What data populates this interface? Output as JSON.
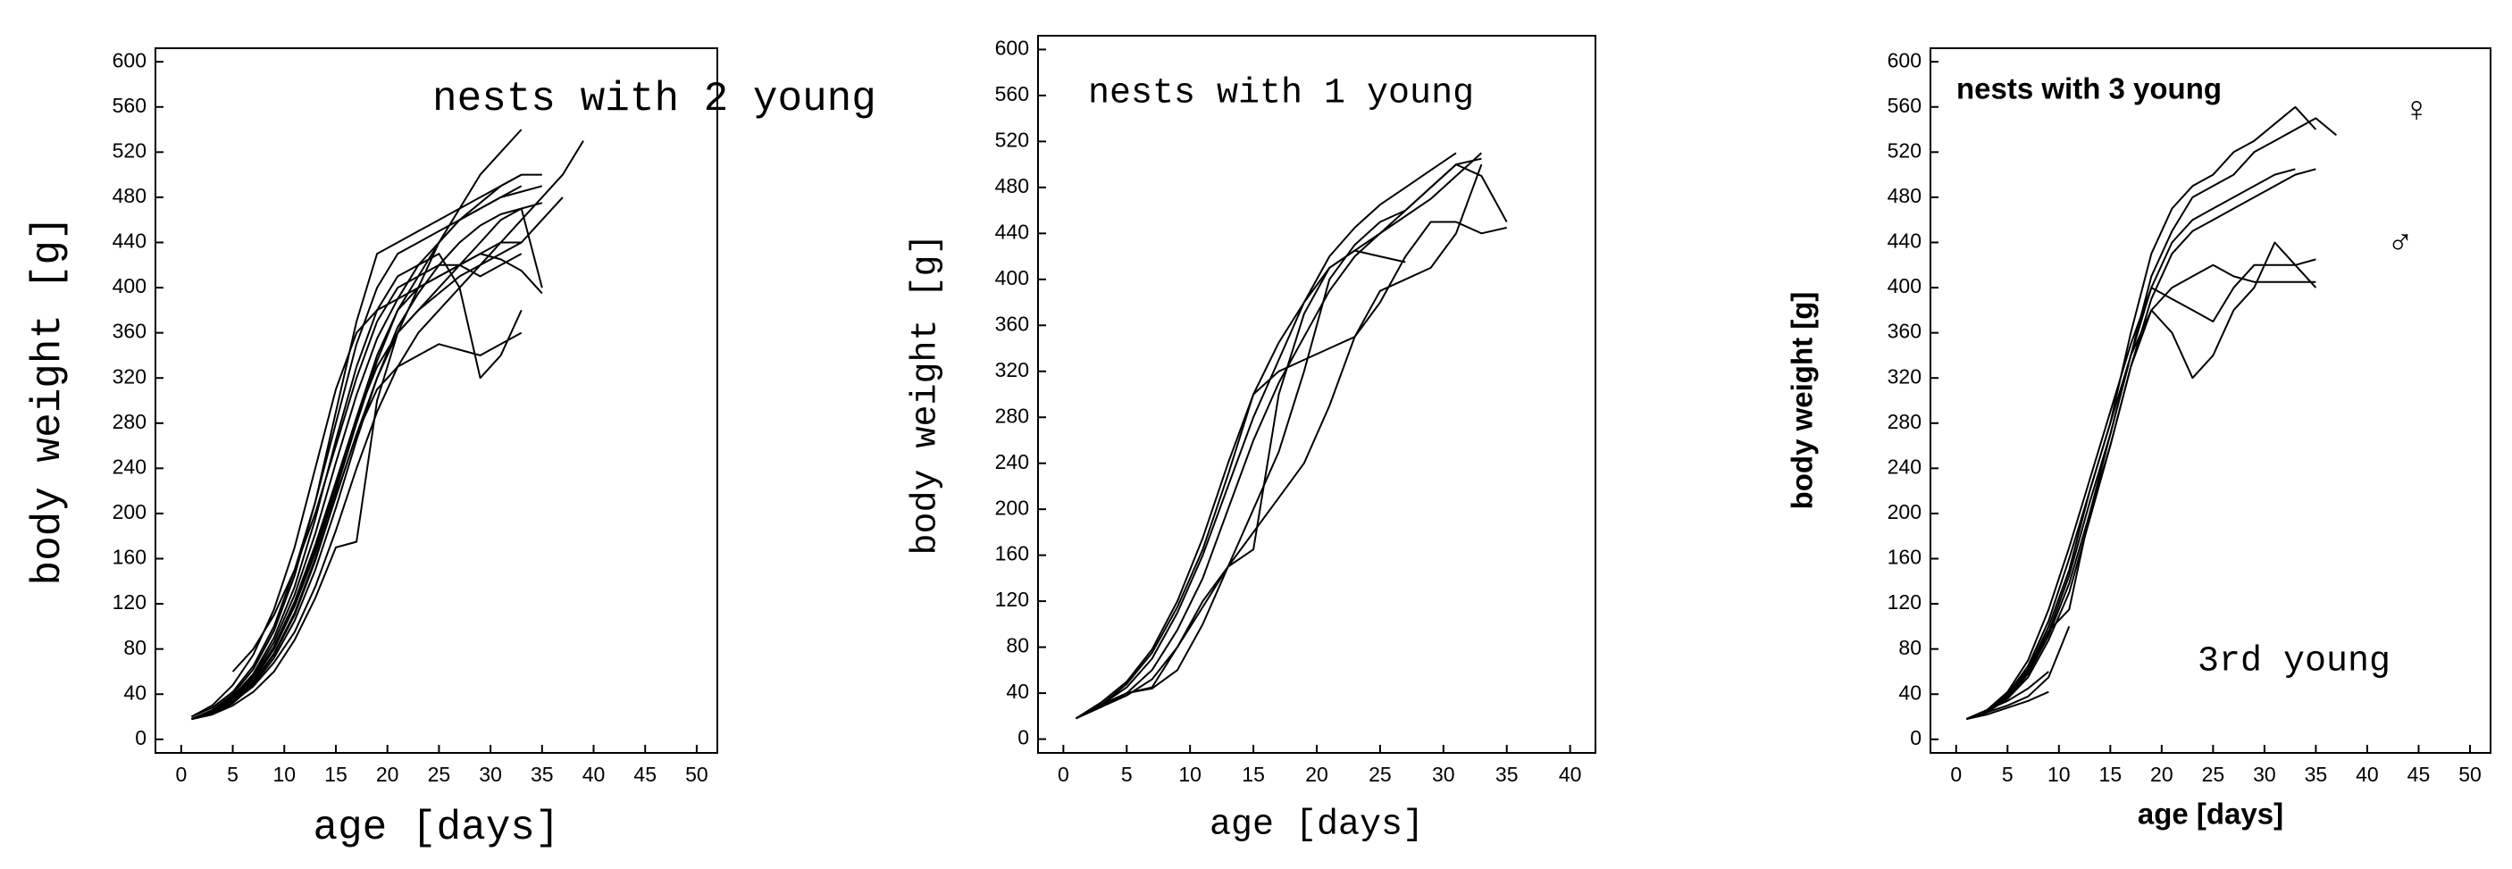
{
  "chart_data": [
    {
      "type": "line",
      "title": "nests with 2 young",
      "x_label": "age [days]",
      "y_label": "body weight [g]",
      "x": [
        1,
        3,
        5,
        7,
        9,
        11,
        13,
        15,
        17,
        19,
        21,
        23,
        25,
        27,
        29,
        31,
        33,
        35,
        37,
        39
      ],
      "series": [
        {
          "color": "#000000",
          "values": [
            18,
            24,
            35,
            52,
            80,
            118,
            165,
            220,
            280,
            335,
            380,
            410,
            440,
            470,
            500,
            520,
            540,
            null,
            null,
            null
          ]
        },
        {
          "color": "#000000",
          "values": [
            18,
            22,
            32,
            48,
            72,
            105,
            150,
            205,
            265,
            320,
            365,
            395,
            420,
            440,
            455,
            465,
            470,
            475,
            null,
            null
          ]
        },
        {
          "color": "#000000",
          "values": [
            20,
            28,
            42,
            65,
            100,
            150,
            210,
            280,
            350,
            400,
            430,
            440,
            450,
            460,
            470,
            480,
            490,
            null,
            null,
            null
          ]
        },
        {
          "color": "#000000",
          "values": [
            18,
            23,
            33,
            47,
            68,
            95,
            135,
            185,
            240,
            290,
            330,
            360,
            380,
            400,
            420,
            440,
            460,
            480,
            500,
            530
          ]
        },
        {
          "color": "#000000",
          "values": [
            18,
            25,
            38,
            58,
            90,
            135,
            195,
            265,
            330,
            380,
            410,
            420,
            430,
            400,
            320,
            340,
            380,
            null,
            null,
            null
          ]
        },
        {
          "color": "#000000",
          "values": [
            18,
            24,
            36,
            54,
            82,
            122,
            172,
            228,
            285,
            330,
            360,
            380,
            400,
            420,
            440,
            460,
            470,
            400,
            null,
            null
          ]
        },
        {
          "color": "#000000",
          "values": [
            20,
            30,
            48,
            75,
            115,
            170,
            240,
            310,
            360,
            380,
            390,
            400,
            410,
            420,
            430,
            440,
            440,
            null,
            null,
            null
          ]
        },
        {
          "color": "#000000",
          "values": [
            18,
            22,
            30,
            42,
            60,
            88,
            125,
            170,
            175,
            300,
            360,
            380,
            395,
            410,
            420,
            430,
            440,
            460,
            480,
            null
          ]
        },
        {
          "color": "#000000",
          "values": [
            18,
            26,
            40,
            62,
            96,
            145,
            210,
            290,
            370,
            430,
            440,
            450,
            460,
            470,
            480,
            490,
            500,
            null,
            null,
            null
          ]
        },
        {
          "color": "#000000",
          "values": [
            18,
            24,
            34,
            50,
            75,
            110,
            158,
            215,
            270,
            310,
            330,
            340,
            350,
            345,
            340,
            350,
            360,
            null,
            null,
            null
          ]
        },
        {
          "color": "#000000",
          "values": [
            18,
            23,
            34,
            50,
            76,
            112,
            160,
            215,
            270,
            320,
            360,
            400,
            440,
            460,
            470,
            480,
            485,
            490,
            null,
            null
          ]
        },
        {
          "color": "#000000",
          "values": [
            null,
            null,
            60,
            80,
            110,
            150,
            200,
            260,
            320,
            370,
            400,
            410,
            420,
            420,
            410,
            420,
            430,
            null,
            null,
            null
          ]
        },
        {
          "color": "#000000",
          "values": [
            18,
            25,
            37,
            56,
            86,
            128,
            182,
            245,
            305,
            355,
            390,
            420,
            440,
            460,
            475,
            490,
            500,
            500,
            null,
            null
          ]
        },
        {
          "color": "#000000",
          "values": [
            18,
            24,
            36,
            53,
            80,
            118,
            168,
            225,
            285,
            340,
            380,
            400,
            410,
            420,
            430,
            425,
            415,
            395,
            null,
            null
          ]
        }
      ],
      "xlim": [
        -2.5,
        52
      ],
      "ylim": [
        -12,
        612
      ],
      "xticks": [
        0,
        5,
        10,
        15,
        20,
        25,
        30,
        35,
        40,
        45,
        50
      ],
      "yticks": [
        0,
        40,
        80,
        120,
        160,
        200,
        240,
        280,
        320,
        360,
        400,
        440,
        480,
        520,
        560,
        600
      ]
    },
    {
      "type": "line",
      "title": "nests with 1 young",
      "x_label": "age [days]",
      "y_label": "body weight [g]",
      "x": [
        1,
        3,
        5,
        7,
        9,
        11,
        13,
        15,
        17,
        19,
        21,
        23,
        25,
        27,
        29,
        31,
        33,
        35
      ],
      "series": [
        {
          "color": "#000000",
          "values": [
            18,
            30,
            45,
            70,
            110,
            160,
            220,
            280,
            330,
            380,
            420,
            445,
            465,
            480,
            495,
            510,
            null,
            null
          ]
        },
        {
          "color": "#000000",
          "values": [
            18,
            28,
            40,
            60,
            95,
            140,
            200,
            260,
            310,
            350,
            390,
            420,
            440,
            460,
            480,
            500,
            490,
            450
          ]
        },
        {
          "color": "#000000",
          "values": [
            18,
            30,
            40,
            45,
            80,
            120,
            150,
            180,
            210,
            240,
            290,
            350,
            390,
            400,
            410,
            440,
            500,
            null
          ]
        },
        {
          "color": "#000000",
          "values": [
            18,
            30,
            48,
            75,
            115,
            165,
            230,
            300,
            345,
            380,
            410,
            425,
            420,
            415,
            null,
            null,
            null,
            null
          ]
        },
        {
          "color": "#000000",
          "values": [
            18,
            28,
            38,
            52,
            80,
            115,
            150,
            200,
            250,
            320,
            400,
            430,
            450,
            460,
            480,
            500,
            505,
            null
          ]
        },
        {
          "color": "#000000",
          "values": [
            18,
            32,
            50,
            78,
            120,
            175,
            240,
            300,
            320,
            330,
            340,
            350,
            380,
            420,
            450,
            450,
            440,
            445
          ]
        },
        {
          "color": "#000000",
          "values": [
            18,
            30,
            40,
            44,
            60,
            100,
            150,
            165,
            300,
            370,
            410,
            425,
            440,
            455,
            470,
            490,
            510,
            null
          ]
        }
      ],
      "xlim": [
        -2,
        42
      ],
      "ylim": [
        -12,
        612
      ],
      "xticks": [
        0,
        5,
        10,
        15,
        20,
        25,
        30,
        35,
        40
      ],
      "yticks": [
        0,
        40,
        80,
        120,
        160,
        200,
        240,
        280,
        320,
        360,
        400,
        440,
        480,
        520,
        560,
        600
      ]
    },
    {
      "type": "line",
      "title": "nests with 3 young",
      "x_label": "age [days]",
      "y_label": "body weight [g]",
      "annotations": [
        "♀",
        "♂",
        "3rd young"
      ],
      "x": [
        1,
        3,
        5,
        7,
        9,
        11,
        13,
        15,
        17,
        19,
        21,
        23,
        25,
        27,
        29,
        31,
        33,
        35,
        37
      ],
      "series": [
        {
          "color": "#000000",
          "values": [
            18,
            25,
            40,
            65,
            105,
            160,
            220,
            280,
            360,
            430,
            470,
            490,
            500,
            520,
            530,
            545,
            560,
            540,
            null
          ]
        },
        {
          "color": "#000000",
          "values": [
            18,
            24,
            38,
            60,
            95,
            145,
            210,
            270,
            340,
            410,
            450,
            480,
            490,
            500,
            520,
            530,
            540,
            550,
            535
          ]
        },
        {
          "color": "#000000",
          "values": [
            18,
            26,
            42,
            70,
            115,
            170,
            230,
            290,
            350,
            400,
            440,
            460,
            470,
            480,
            490,
            500,
            505,
            null,
            null
          ]
        },
        {
          "color": "#000000",
          "values": [
            18,
            24,
            36,
            58,
            92,
            138,
            200,
            260,
            330,
            390,
            430,
            450,
            460,
            470,
            480,
            490,
            500,
            505,
            null
          ]
        },
        {
          "color": "#000000",
          "values": [
            18,
            25,
            38,
            60,
            96,
            115,
            200,
            270,
            340,
            400,
            390,
            380,
            370,
            400,
            420,
            420,
            420,
            425,
            null
          ]
        },
        {
          "color": "#000000",
          "values": [
            18,
            24,
            36,
            55,
            88,
            130,
            195,
            260,
            330,
            380,
            360,
            320,
            340,
            380,
            400,
            440,
            420,
            400,
            null
          ]
        },
        {
          "color": "#000000",
          "values": [
            18,
            26,
            40,
            62,
            100,
            150,
            220,
            280,
            340,
            380,
            400,
            410,
            420,
            410,
            405,
            405,
            405,
            405,
            null
          ]
        },
        {
          "color": "#000000",
          "values": [
            18,
            22,
            28,
            34,
            42,
            null,
            null,
            null,
            null,
            null,
            null,
            null,
            null,
            null,
            null,
            null,
            null,
            null,
            null
          ]
        },
        {
          "color": "#000000",
          "values": [
            18,
            24,
            30,
            38,
            55,
            100,
            null,
            null,
            null,
            null,
            null,
            null,
            null,
            null,
            null,
            null,
            null,
            null,
            null
          ]
        },
        {
          "color": "#000000",
          "values": [
            18,
            26,
            34,
            45,
            60,
            null,
            null,
            null,
            null,
            null,
            null,
            null,
            null,
            null,
            null,
            null,
            null,
            null,
            null
          ]
        }
      ],
      "xlim": [
        -2.5,
        52
      ],
      "ylim": [
        -12,
        612
      ],
      "xticks": [
        0,
        5,
        10,
        15,
        20,
        25,
        30,
        35,
        40,
        45,
        50
      ],
      "yticks": [
        0,
        40,
        80,
        120,
        160,
        200,
        240,
        280,
        320,
        360,
        400,
        440,
        480,
        520,
        560,
        600
      ]
    }
  ]
}
